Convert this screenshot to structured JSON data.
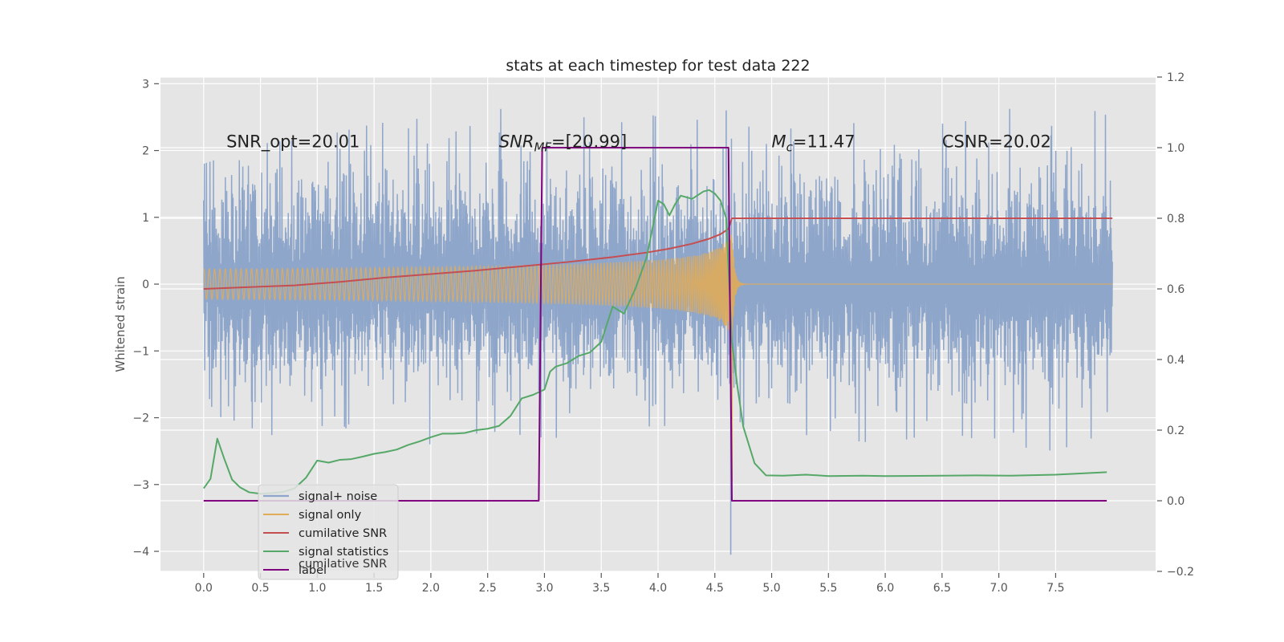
{
  "chart_data": {
    "type": "line",
    "title": "stats at each timestep for test data 222",
    "xlabel": "",
    "ylabel": "Whitened strain",
    "y2label": "",
    "xlim": [
      -0.38,
      8.38
    ],
    "ylim": [
      -4.3,
      3.1
    ],
    "y2lim": [
      -0.2,
      1.2
    ],
    "xticks": [
      0.0,
      0.5,
      1.0,
      1.5,
      2.0,
      2.5,
      3.0,
      3.5,
      4.0,
      4.5,
      5.0,
      5.5,
      6.0,
      6.5,
      7.0,
      7.5
    ],
    "xtick_labels": [
      "0.0",
      "0.5",
      "1.0",
      "1.5",
      "2.0",
      "2.5",
      "3.0",
      "3.5",
      "4.0",
      "4.5",
      "5.0",
      "5.5",
      "6.0",
      "6.5",
      "7.0",
      "7.5"
    ],
    "yticks": [
      -4,
      -3,
      -2,
      -1,
      0,
      1,
      2,
      3
    ],
    "ytick_labels": [
      "−4",
      "−3",
      "−2",
      "−1",
      "0",
      "1",
      "2",
      "3"
    ],
    "y2ticks": [
      -0.2,
      0.0,
      0.2,
      0.4,
      0.6,
      0.8,
      1.0,
      1.2
    ],
    "y2tick_labels": [
      "−0.2",
      "0.0",
      "0.2",
      "0.4",
      "0.6",
      "0.8",
      "1.0",
      "1.2"
    ],
    "grid": true,
    "annotations": [
      {
        "name": "snr-opt",
        "text": "SNR_opt=20.01",
        "x": 0.2,
        "y": 2.05
      },
      {
        "name": "snr-mf",
        "text": "SNR_MF=[20.99]",
        "x": 2.6,
        "y": 2.05
      },
      {
        "name": "chirp-mass",
        "text": "M_c=11.47",
        "x": 5.0,
        "y": 2.05
      },
      {
        "name": "csnr",
        "text": "CSNR=20.02",
        "x": 6.5,
        "y": 2.05
      }
    ],
    "series": [
      {
        "name": "signal+ noise",
        "axis": "left",
        "color": "#8fa6cb",
        "style": "dense-noise",
        "x_range": [
          0.0,
          8.0
        ],
        "envelope_pos": [
          1.8,
          2.1,
          2.2,
          2.4,
          2.5,
          2.6,
          2.7,
          2.8,
          2.5,
          2.9,
          2.7,
          2.5,
          2.3,
          2.4,
          2.6,
          2.8,
          2.5
        ],
        "envelope_neg": [
          -1.9,
          -2.2,
          -2.5,
          -2.3,
          -2.4,
          -2.2,
          -2.3,
          -2.3,
          -2.1,
          -2.5,
          -2.2,
          -2.3,
          -2.4,
          -2.2,
          -2.4,
          -2.5,
          -2.2
        ],
        "outliers": [
          {
            "x": 4.6,
            "y": 2.6
          },
          {
            "x": 4.64,
            "y": -4.05
          }
        ]
      },
      {
        "name": "signal only",
        "axis": "left",
        "color": "#e0ac5a",
        "style": "chirp",
        "x_range": [
          0.0,
          8.0
        ],
        "merger_time": 4.65,
        "peak_amplitude": 1.05
      },
      {
        "name": "cumilative SNR",
        "axis": "right",
        "color": "#c44e52",
        "x": [
          0.0,
          0.4,
          0.8,
          1.2,
          1.6,
          2.0,
          2.4,
          2.8,
          3.2,
          3.6,
          3.9,
          4.1,
          4.3,
          4.45,
          4.55,
          4.62,
          4.65,
          4.7,
          5.5,
          6.5,
          7.5,
          8.0
        ],
        "values": [
          0.6,
          0.605,
          0.61,
          0.62,
          0.632,
          0.642,
          0.652,
          0.664,
          0.676,
          0.69,
          0.703,
          0.714,
          0.728,
          0.742,
          0.755,
          0.77,
          0.8,
          0.8,
          0.8,
          0.8,
          0.8,
          0.8
        ]
      },
      {
        "name": "signal statistics",
        "axis": "right",
        "color": "#55a868",
        "x": [
          0.0,
          0.06,
          0.12,
          0.18,
          0.25,
          0.32,
          0.4,
          0.5,
          0.6,
          0.7,
          0.8,
          0.9,
          1.0,
          1.1,
          1.2,
          1.3,
          1.4,
          1.5,
          1.6,
          1.7,
          1.8,
          1.9,
          2.0,
          2.1,
          2.2,
          2.3,
          2.4,
          2.5,
          2.6,
          2.7,
          2.8,
          2.9,
          3.0,
          3.05,
          3.1,
          3.2,
          3.3,
          3.4,
          3.5,
          3.6,
          3.7,
          3.8,
          3.9,
          4.0,
          4.05,
          4.1,
          4.15,
          4.2,
          4.3,
          4.4,
          4.45,
          4.5,
          4.55,
          4.6,
          4.65,
          4.7,
          4.75,
          4.85,
          4.95,
          5.1,
          5.3,
          5.5,
          5.8,
          6.0,
          6.5,
          6.8,
          7.1,
          7.5,
          7.95
        ],
        "values": [
          0.035,
          0.062,
          0.176,
          0.12,
          0.06,
          0.038,
          0.024,
          0.02,
          0.022,
          0.025,
          0.035,
          0.065,
          0.114,
          0.108,
          0.116,
          0.118,
          0.125,
          0.133,
          0.138,
          0.145,
          0.158,
          0.168,
          0.18,
          0.19,
          0.19,
          0.192,
          0.2,
          0.204,
          0.212,
          0.24,
          0.29,
          0.3,
          0.315,
          0.366,
          0.38,
          0.39,
          0.41,
          0.42,
          0.45,
          0.55,
          0.53,
          0.6,
          0.69,
          0.85,
          0.84,
          0.808,
          0.84,
          0.864,
          0.855,
          0.876,
          0.88,
          0.87,
          0.85,
          0.8,
          0.45,
          0.32,
          0.21,
          0.106,
          0.072,
          0.071,
          0.074,
          0.07,
          0.071,
          0.07,
          0.071,
          0.072,
          0.071,
          0.074,
          0.081
        ]
      },
      {
        "name": "label",
        "axis": "right",
        "color": "#800080",
        "x": [
          0.0,
          2.95,
          2.98,
          4.62,
          4.65,
          7.95
        ],
        "values": [
          0.0,
          0.0,
          1.0,
          1.0,
          0.0,
          0.0
        ]
      }
    ],
    "legend": {
      "placement": "lower-left",
      "entries": [
        "signal+ noise",
        "signal only",
        "cumilative SNR",
        "signal statistics",
        "label"
      ],
      "hidden_text": "cumilative SNR"
    }
  }
}
